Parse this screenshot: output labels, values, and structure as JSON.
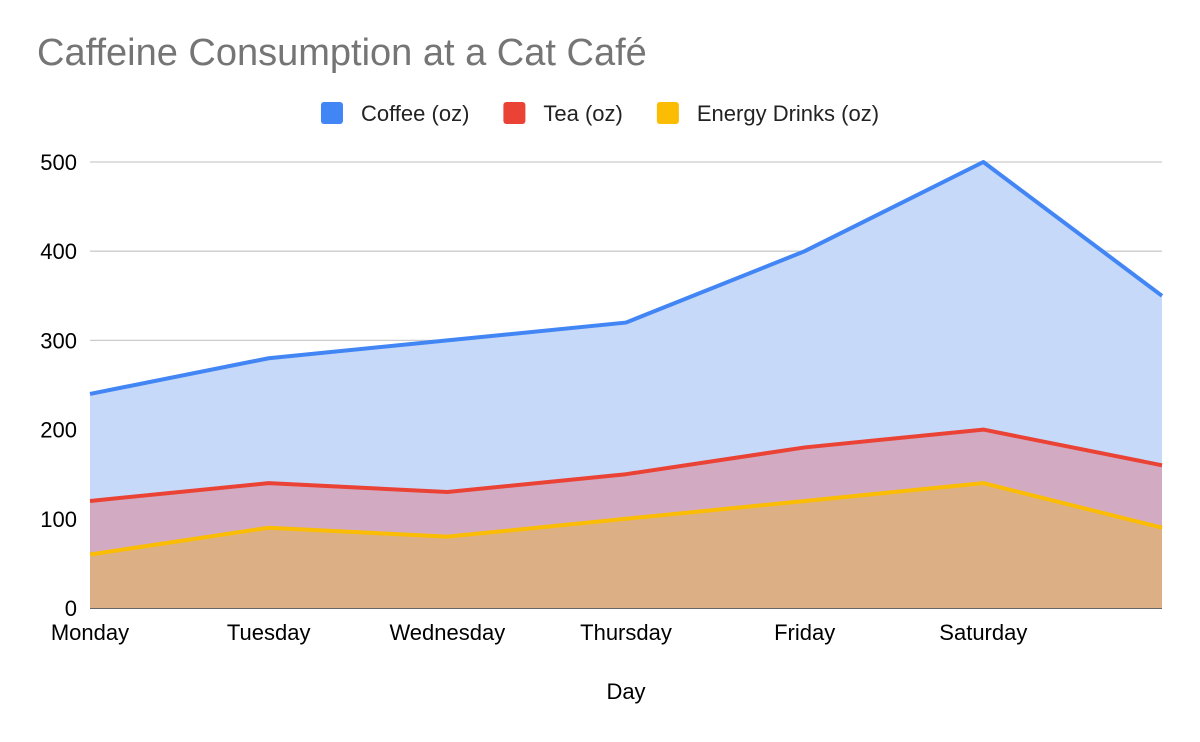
{
  "chart_data": {
    "type": "area",
    "title": "Caffeine Consumption at a Cat Café",
    "xlabel": "Day",
    "ylabel": "",
    "categories": [
      "Monday",
      "Tuesday",
      "Wednesday",
      "Thursday",
      "Friday",
      "Saturday",
      ""
    ],
    "ylim": [
      0,
      500
    ],
    "yticks": [
      0,
      100,
      200,
      300,
      400,
      500
    ],
    "grid": true,
    "legend": "top",
    "overlapping": true,
    "series": [
      {
        "name": "Coffee (oz)",
        "color": "#4285f4",
        "fill": "#c6d9f9",
        "values": [
          240,
          280,
          300,
          320,
          400,
          500,
          350
        ]
      },
      {
        "name": "Tea (oz)",
        "color": "#ea4335",
        "fill": "#d2abc3",
        "values": [
          120,
          140,
          130,
          150,
          180,
          200,
          160
        ]
      },
      {
        "name": "Energy Drinks (oz)",
        "color": "#fbbc04",
        "fill": "#dcb084",
        "values": [
          60,
          90,
          80,
          100,
          120,
          140,
          90
        ]
      }
    ]
  }
}
